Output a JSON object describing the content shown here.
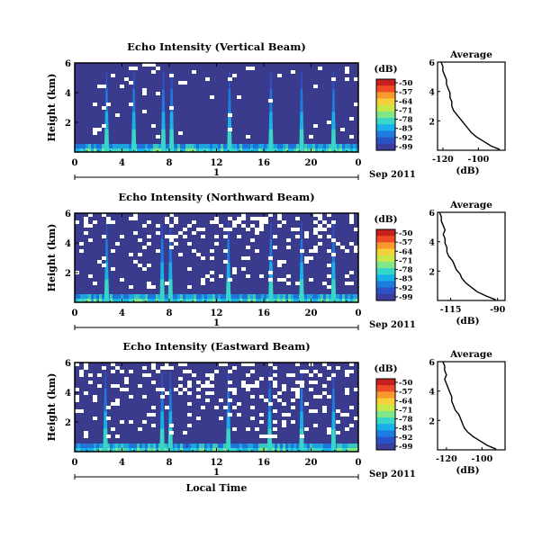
{
  "chart_data": [
    {
      "type": "heatmap",
      "title": "Echo Intensity (Vertical Beam)",
      "ylabel": "Height (km)",
      "yticks": [
        "6",
        "4",
        "2"
      ],
      "xticks": [
        "0",
        "4",
        "8",
        "12",
        "16",
        "20",
        "0"
      ],
      "date_label": "1",
      "month_label": "Sep 2011",
      "xlim": [
        0,
        24
      ],
      "ylim": [
        0,
        6
      ],
      "colorbar": {
        "unit": "(dB)",
        "ticks": [
          "-50",
          "-57",
          "-64",
          "-71",
          "-78",
          "-85",
          "-92",
          "-99"
        ]
      },
      "bright_columns_hours": [
        2.7,
        5.0,
        7.5,
        8.2,
        13.1,
        16.6,
        19.2,
        21.9
      ],
      "white_gap_density": 0.06,
      "seed": 11,
      "profile": {
        "title": "Average",
        "xlabel": "(dB)",
        "xticks": [
          "-120",
          "-100"
        ],
        "xlim": [
          -123,
          -85
        ],
        "yticks": [
          "6",
          "4",
          "2"
        ],
        "ylim": [
          0,
          6
        ],
        "height_km": [
          0.05,
          0.3,
          0.6,
          0.9,
          1.2,
          1.5,
          1.8,
          2.1,
          2.4,
          2.7,
          3.0,
          3.3,
          3.6,
          3.9,
          4.2,
          4.5,
          4.8,
          5.1,
          5.4,
          5.7,
          6.0
        ],
        "db": [
          -88,
          -93,
          -97,
          -101,
          -104,
          -106,
          -108,
          -110,
          -112,
          -114,
          -115,
          -115,
          -116,
          -116,
          -117,
          -118,
          -118,
          -119,
          -120,
          -120,
          -121
        ]
      }
    },
    {
      "type": "heatmap",
      "title": "Echo Intensity (Northward Beam)",
      "ylabel": "Height (km)",
      "yticks": [
        "6",
        "4",
        "2"
      ],
      "xticks": [
        "0",
        "4",
        "8",
        "12",
        "16",
        "20",
        "0"
      ],
      "date_label": "1",
      "month_label": "Sep 2011",
      "xlim": [
        0,
        24
      ],
      "ylim": [
        0,
        6
      ],
      "colorbar": {
        "unit": "(dB)",
        "ticks": [
          "-50",
          "-57",
          "-64",
          "-71",
          "-78",
          "-85",
          "-92",
          "-99"
        ]
      },
      "bright_columns_hours": [
        2.7,
        7.4,
        8.1,
        13.0,
        16.6,
        19.2,
        21.9
      ],
      "white_gap_density": 0.17,
      "seed": 23,
      "profile": {
        "title": "Average",
        "xlabel": "(dB)",
        "xticks": [
          "-115",
          "-90"
        ],
        "xlim": [
          -122,
          -86
        ],
        "yticks": [
          "6",
          "4",
          "2"
        ],
        "ylim": [
          0,
          6
        ],
        "height_km": [
          0.05,
          0.3,
          0.6,
          0.9,
          1.2,
          1.5,
          1.8,
          2.1,
          2.4,
          2.7,
          3.0,
          3.3,
          3.6,
          3.9,
          4.2,
          4.5,
          4.8,
          5.1,
          5.4,
          5.7,
          6.0
        ],
        "db": [
          -91,
          -96,
          -101,
          -104,
          -107,
          -109,
          -110,
          -112,
          -113,
          -114,
          -116,
          -117,
          -117,
          -118,
          -118,
          -119,
          -118,
          -119,
          -120,
          -120,
          -121
        ]
      }
    },
    {
      "type": "heatmap",
      "title": "Echo Intensity (Eastward Beam)",
      "ylabel": "Height (km)",
      "yticks": [
        "6",
        "4",
        "2"
      ],
      "xticks": [
        "0",
        "4",
        "8",
        "12",
        "16",
        "20",
        "0"
      ],
      "date_label": "1",
      "month_label": "Sep 2011",
      "xlabel": "Local Time",
      "xlim": [
        0,
        24
      ],
      "ylim": [
        0,
        6
      ],
      "colorbar": {
        "unit": "(dB)",
        "ticks": [
          "-50",
          "-57",
          "-64",
          "-71",
          "-78",
          "-85",
          "-92",
          "-99"
        ]
      },
      "bright_columns_hours": [
        2.6,
        7.4,
        8.1,
        13.0,
        16.5,
        19.2,
        21.9
      ],
      "white_gap_density": 0.2,
      "seed": 37,
      "profile": {
        "title": "Average",
        "xlabel": "(dB)",
        "xticks": [
          "-120",
          "-100"
        ],
        "xlim": [
          -125,
          -87
        ],
        "yticks": [
          "6",
          "4",
          "2"
        ],
        "ylim": [
          0,
          6
        ],
        "height_km": [
          0.05,
          0.3,
          0.6,
          0.9,
          1.2,
          1.5,
          1.8,
          2.1,
          2.4,
          2.7,
          3.0,
          3.3,
          3.6,
          3.9,
          4.2,
          4.5,
          4.8,
          5.1,
          5.4,
          5.7,
          6.0
        ],
        "db": [
          -92,
          -97,
          -101,
          -105,
          -108,
          -110,
          -111,
          -112,
          -113,
          -115,
          -116,
          -117,
          -117,
          -118,
          -119,
          -120,
          -121,
          -120,
          -121,
          -121,
          -122
        ]
      }
    }
  ]
}
